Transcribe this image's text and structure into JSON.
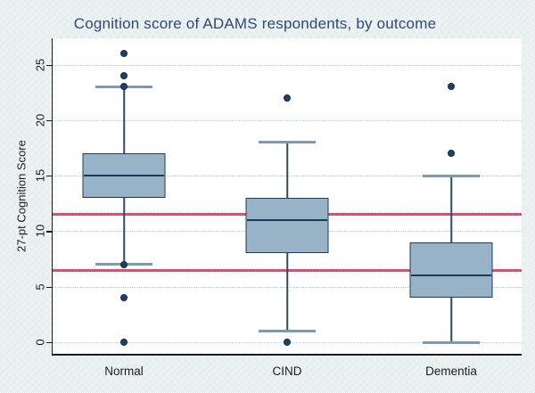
{
  "title": "Cognition score of ADAMS respondents, by outcome",
  "colors": {
    "title_text": "#2a477c",
    "axis_text": "#1a1a1a",
    "box_fill": "#96b1c6",
    "box_border": "#1d3d5f",
    "outlier": "#1d4266",
    "reference_line": "#d84f72",
    "gridline": "#a7d9de",
    "plot_background": "#ffffff",
    "page_background": "#e8f0f5"
  },
  "chart_data": {
    "type": "box",
    "title": "Cognition score of ADAMS respondents, by outcome",
    "xlabel": "",
    "ylabel": "27-pt Cognition Score",
    "categories": [
      "Normal",
      "CIND",
      "Dementia"
    ],
    "y_ticks": [
      0,
      5,
      10,
      15,
      20,
      25
    ],
    "ylim": [
      -1.1,
      27.4
    ],
    "grid": true,
    "gridline_style": "dotted",
    "reference_lines": [
      11.5,
      6.5
    ],
    "series": [
      {
        "category": "Normal",
        "whisker_low": 7,
        "q1": 13,
        "median": 15,
        "q3": 17,
        "whisker_high": 23,
        "outliers": [
          26,
          24,
          23,
          7,
          4,
          0
        ]
      },
      {
        "category": "CIND",
        "whisker_low": 1,
        "q1": 8,
        "median": 11,
        "q3": 13,
        "whisker_high": 18,
        "outliers": [
          22,
          0
        ]
      },
      {
        "category": "Dementia",
        "whisker_low": 0,
        "q1": 4,
        "median": 6,
        "q3": 9,
        "whisker_high": 15,
        "outliers": [
          23,
          17
        ]
      }
    ]
  }
}
